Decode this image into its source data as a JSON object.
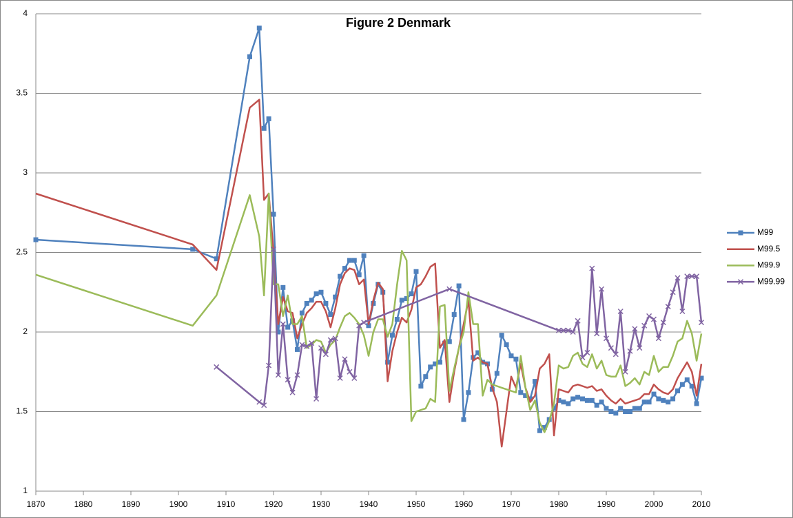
{
  "chart_data": {
    "type": "line",
    "title": "Figure 2 Denmark",
    "x": [
      1870,
      1903,
      1908,
      1915,
      1917,
      1918,
      1919,
      1920,
      1921,
      1922,
      1923,
      1924,
      1925,
      1926,
      1927,
      1928,
      1929,
      1930,
      1931,
      1932,
      1933,
      1934,
      1935,
      1936,
      1937,
      1938,
      1939,
      1940,
      1941,
      1942,
      1943,
      1944,
      1945,
      1946,
      1947,
      1948,
      1949,
      1950,
      1951,
      1952,
      1953,
      1954,
      1955,
      1956,
      1957,
      1958,
      1959,
      1960,
      1961,
      1962,
      1963,
      1964,
      1965,
      1966,
      1967,
      1968,
      1969,
      1970,
      1971,
      1972,
      1973,
      1974,
      1975,
      1976,
      1977,
      1978,
      1979,
      1980,
      1981,
      1982,
      1983,
      1984,
      1985,
      1986,
      1987,
      1988,
      1989,
      1990,
      1991,
      1992,
      1993,
      1994,
      1995,
      1996,
      1997,
      1998,
      1999,
      2000,
      2001,
      2002,
      2003,
      2004,
      2005,
      2006,
      2007,
      2008,
      2009,
      2010
    ],
    "series": [
      {
        "name": "M99",
        "color": "#4f81bd",
        "marker": "square",
        "values": [
          2.58,
          2.52,
          2.46,
          3.73,
          3.91,
          3.28,
          3.34,
          2.74,
          2.0,
          2.28,
          2.03,
          2.07,
          1.89,
          2.12,
          2.18,
          2.2,
          2.24,
          2.25,
          2.18,
          2.11,
          2.22,
          2.35,
          2.4,
          2.45,
          2.45,
          2.36,
          2.48,
          2.04,
          2.18,
          2.3,
          2.25,
          1.81,
          1.98,
          2.08,
          2.2,
          2.21,
          2.24,
          2.38,
          1.66,
          1.72,
          1.78,
          1.8,
          1.81,
          1.93,
          1.94,
          2.11,
          2.29,
          1.45,
          1.62,
          1.84,
          1.87,
          1.81,
          1.8,
          1.64,
          1.74,
          1.98,
          1.92,
          1.85,
          1.83,
          1.62,
          1.6,
          1.58,
          1.69,
          1.38,
          1.4,
          1.45,
          1.52,
          1.57,
          1.56,
          1.55,
          1.58,
          1.59,
          1.58,
          1.57,
          1.57,
          1.54,
          1.56,
          1.52,
          1.5,
          1.49,
          1.52,
          1.5,
          1.5,
          1.52,
          1.52,
          1.56,
          1.56,
          1.61,
          1.58,
          1.57,
          1.56,
          1.58,
          1.63,
          1.67,
          1.7,
          1.66,
          1.55,
          1.71
        ]
      },
      {
        "name": "M99.5",
        "color": "#c0504d",
        "marker": "none",
        "values": [
          2.87,
          2.55,
          2.39,
          3.41,
          3.46,
          2.83,
          2.87,
          2.5,
          2.05,
          2.22,
          2.13,
          2.12,
          1.96,
          2.05,
          2.12,
          2.15,
          2.19,
          2.19,
          2.13,
          2.03,
          2.15,
          2.3,
          2.37,
          2.4,
          2.39,
          2.3,
          2.33,
          2.05,
          2.2,
          2.31,
          2.27,
          1.69,
          1.88,
          2.0,
          2.09,
          2.06,
          2.14,
          2.28,
          2.3,
          2.35,
          2.41,
          2.43,
          1.9,
          1.95,
          1.56,
          1.75,
          1.9,
          2.05,
          2.2,
          1.82,
          1.84,
          1.81,
          1.8,
          1.65,
          1.56,
          1.28,
          1.5,
          1.72,
          1.65,
          1.8,
          1.65,
          1.56,
          1.6,
          1.77,
          1.8,
          1.86,
          1.35,
          1.64,
          1.63,
          1.62,
          1.66,
          1.67,
          1.66,
          1.65,
          1.66,
          1.63,
          1.64,
          1.6,
          1.57,
          1.55,
          1.58,
          1.55,
          1.56,
          1.57,
          1.58,
          1.61,
          1.61,
          1.67,
          1.64,
          1.62,
          1.61,
          1.64,
          1.71,
          1.76,
          1.81,
          1.75,
          1.6,
          1.8
        ]
      },
      {
        "name": "M99.9",
        "color": "#9bbb59",
        "marker": "none",
        "values": [
          2.36,
          2.04,
          2.23,
          2.86,
          2.6,
          2.23,
          2.87,
          2.3,
          2.3,
          2.1,
          2.23,
          2.05,
          2.05,
          2.1,
          1.9,
          1.92,
          1.95,
          1.94,
          1.87,
          1.92,
          1.95,
          2.03,
          2.1,
          2.12,
          2.09,
          2.05,
          1.98,
          1.85,
          2.0,
          2.08,
          2.08,
          1.97,
          2.05,
          2.3,
          2.51,
          2.45,
          1.44,
          1.5,
          1.51,
          1.52,
          1.58,
          1.56,
          2.16,
          2.17,
          1.63,
          1.77,
          1.9,
          2.0,
          2.25,
          2.05,
          2.05,
          1.6,
          1.7,
          1.67,
          1.66,
          1.65,
          1.64,
          1.63,
          1.62,
          1.85,
          1.65,
          1.51,
          1.57,
          1.43,
          1.37,
          1.44,
          1.55,
          1.79,
          1.77,
          1.78,
          1.85,
          1.87,
          1.8,
          1.78,
          1.86,
          1.77,
          1.82,
          1.73,
          1.72,
          1.72,
          1.79,
          1.66,
          1.68,
          1.71,
          1.67,
          1.75,
          1.73,
          1.85,
          1.75,
          1.78,
          1.78,
          1.85,
          1.94,
          1.96,
          2.07,
          1.99,
          1.82,
          1.99
        ]
      },
      {
        "name": "M99.99",
        "color": "#8064a2",
        "marker": "x",
        "x": [
          1908,
          1917,
          1918,
          1919,
          1920,
          1921,
          1922,
          1923,
          1924,
          1925,
          1926,
          1927,
          1928,
          1929,
          1930,
          1931,
          1932,
          1933,
          1934,
          1935,
          1936,
          1937,
          1938,
          1939,
          1957,
          1980,
          1981,
          1982,
          1983,
          1984,
          1985,
          1986,
          1987,
          1988,
          1989,
          1990,
          1991,
          1992,
          1993,
          1994,
          1995,
          1996,
          1997,
          1998,
          1999,
          2000,
          2001,
          2002,
          2003,
          2004,
          2005,
          2006,
          2007,
          2008,
          2009,
          2010
        ],
        "values": [
          1.78,
          1.56,
          1.54,
          1.79,
          2.52,
          1.73,
          2.05,
          1.7,
          1.62,
          1.73,
          1.92,
          1.91,
          1.93,
          1.58,
          1.9,
          1.86,
          1.95,
          1.96,
          1.71,
          1.83,
          1.75,
          1.71,
          2.04,
          2.06,
          2.27,
          2.01,
          2.01,
          2.01,
          2.0,
          2.07,
          1.84,
          1.87,
          2.4,
          1.99,
          2.27,
          1.96,
          1.9,
          1.86,
          2.13,
          1.75,
          1.88,
          2.02,
          1.9,
          2.04,
          2.1,
          2.08,
          1.96,
          2.06,
          2.16,
          2.25,
          2.34,
          2.13,
          2.35,
          2.35,
          2.35,
          2.06
        ]
      }
    ],
    "xlim": [
      1870,
      2010
    ],
    "xticks": [
      1870,
      1880,
      1890,
      1900,
      1910,
      1920,
      1930,
      1940,
      1950,
      1960,
      1970,
      1980,
      1990,
      2000,
      2010
    ],
    "ylim": [
      1,
      4
    ],
    "yticks": [
      1,
      1.5,
      2,
      2.5,
      3,
      3.5,
      4
    ],
    "grid": true,
    "legend": "right"
  }
}
